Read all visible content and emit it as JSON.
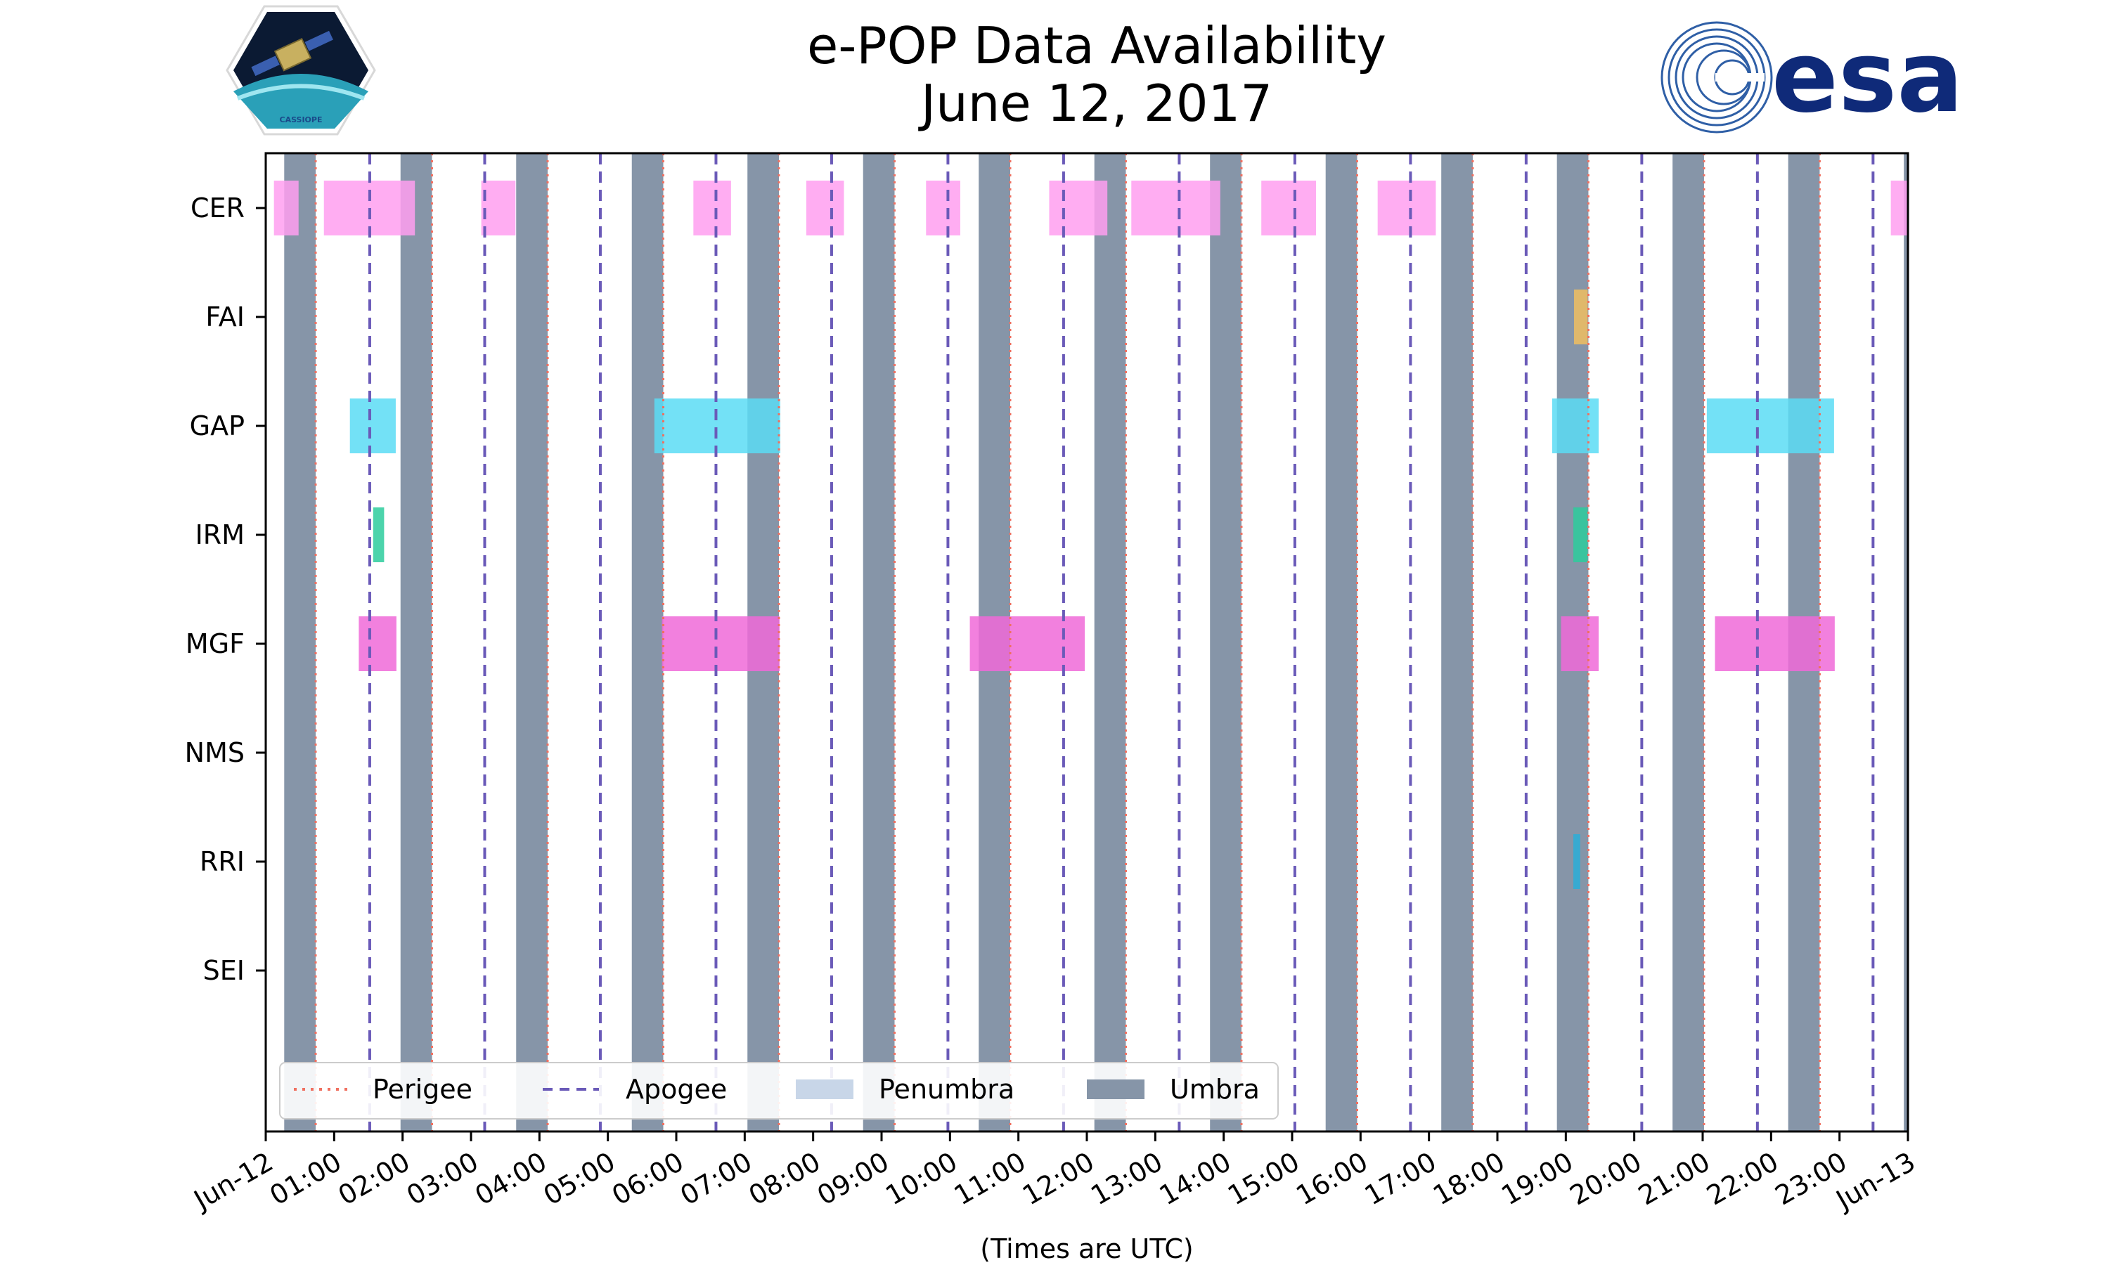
{
  "chart_data": {
    "type": "timeline",
    "title_lines": [
      "e-POP Data Availability",
      "June 12, 2017"
    ],
    "xlabel": "(Times are UTC)",
    "x_range_hours": [
      0,
      24
    ],
    "x_ticks": [
      "Jun-12",
      "01:00",
      "02:00",
      "03:00",
      "04:00",
      "05:00",
      "06:00",
      "07:00",
      "08:00",
      "09:00",
      "10:00",
      "11:00",
      "12:00",
      "13:00",
      "14:00",
      "15:00",
      "16:00",
      "17:00",
      "18:00",
      "19:00",
      "20:00",
      "21:00",
      "22:00",
      "23:00",
      "Jun-13"
    ],
    "instruments": [
      "CER",
      "FAI",
      "GAP",
      "IRM",
      "MGF",
      "NMS",
      "RRI",
      "SEI"
    ],
    "umbra": [
      [
        0.27,
        0.73
      ],
      [
        1.97,
        2.43
      ],
      [
        3.66,
        4.12
      ],
      [
        5.35,
        5.81
      ],
      [
        7.04,
        7.5
      ],
      [
        8.73,
        9.19
      ],
      [
        10.42,
        10.88
      ],
      [
        12.11,
        12.57
      ],
      [
        13.8,
        14.26
      ],
      [
        15.49,
        15.95
      ],
      [
        17.18,
        17.64
      ],
      [
        18.87,
        19.33
      ],
      [
        20.56,
        21.02
      ],
      [
        22.25,
        22.71
      ],
      [
        23.94,
        24.0
      ]
    ],
    "perigee": [
      0.73,
      2.43,
      4.12,
      5.81,
      7.5,
      9.19,
      10.88,
      12.57,
      14.26,
      15.95,
      17.64,
      19.33,
      21.02,
      22.71
    ],
    "apogee": [
      1.52,
      3.2,
      4.89,
      6.58,
      8.27,
      9.97,
      11.66,
      13.35,
      15.04,
      16.73,
      18.42,
      20.11,
      21.8,
      23.49
    ],
    "availability": {
      "CER": [
        [
          0.12,
          0.48
        ],
        [
          0.85,
          2.18
        ],
        [
          3.15,
          3.65
        ],
        [
          6.25,
          6.8
        ],
        [
          7.9,
          8.45
        ],
        [
          9.65,
          10.15
        ],
        [
          11.45,
          12.3
        ],
        [
          12.65,
          13.95
        ],
        [
          14.55,
          15.35
        ],
        [
          16.25,
          17.1
        ],
        [
          23.75,
          24.0
        ]
      ],
      "FAI": [
        [
          19.12,
          19.32
        ]
      ],
      "GAP": [
        [
          1.23,
          1.9
        ],
        [
          5.68,
          7.52
        ],
        [
          18.8,
          19.48
        ],
        [
          21.06,
          22.92
        ]
      ],
      "IRM": [
        [
          1.57,
          1.73
        ],
        [
          19.11,
          19.32
        ]
      ],
      "MGF": [
        [
          1.36,
          1.91
        ],
        [
          5.79,
          7.51
        ],
        [
          10.29,
          11.97
        ],
        [
          18.93,
          19.48
        ],
        [
          21.18,
          22.93
        ]
      ],
      "NMS": [],
      "RRI": [
        [
          19.11,
          19.21
        ]
      ],
      "SEI": []
    },
    "colors": {
      "CER": "#ff9ff0",
      "FAI": "#f0be60",
      "GAP": "#5adcf5",
      "IRM": "#2dcc9c",
      "MGF": "#f06ad8",
      "NMS": "#aaaaaa",
      "RRI": "#2aaed8",
      "SEI": "#aaaaaa",
      "umbra": "#8695a8",
      "penumbra": "#c8d6e8",
      "perigee": "#f07060",
      "apogee": "#6a5ab8"
    },
    "legend": [
      {
        "label": "Perigee",
        "kind": "perigee"
      },
      {
        "label": "Apogee",
        "kind": "apogee"
      },
      {
        "label": "Penumbra",
        "kind": "penumbra"
      },
      {
        "label": "Umbra",
        "kind": "umbra"
      }
    ],
    "legend_placement": "lower-left"
  },
  "logos": {
    "left_logo_text": "CASSIOPE",
    "right_logo_text": "esa"
  }
}
